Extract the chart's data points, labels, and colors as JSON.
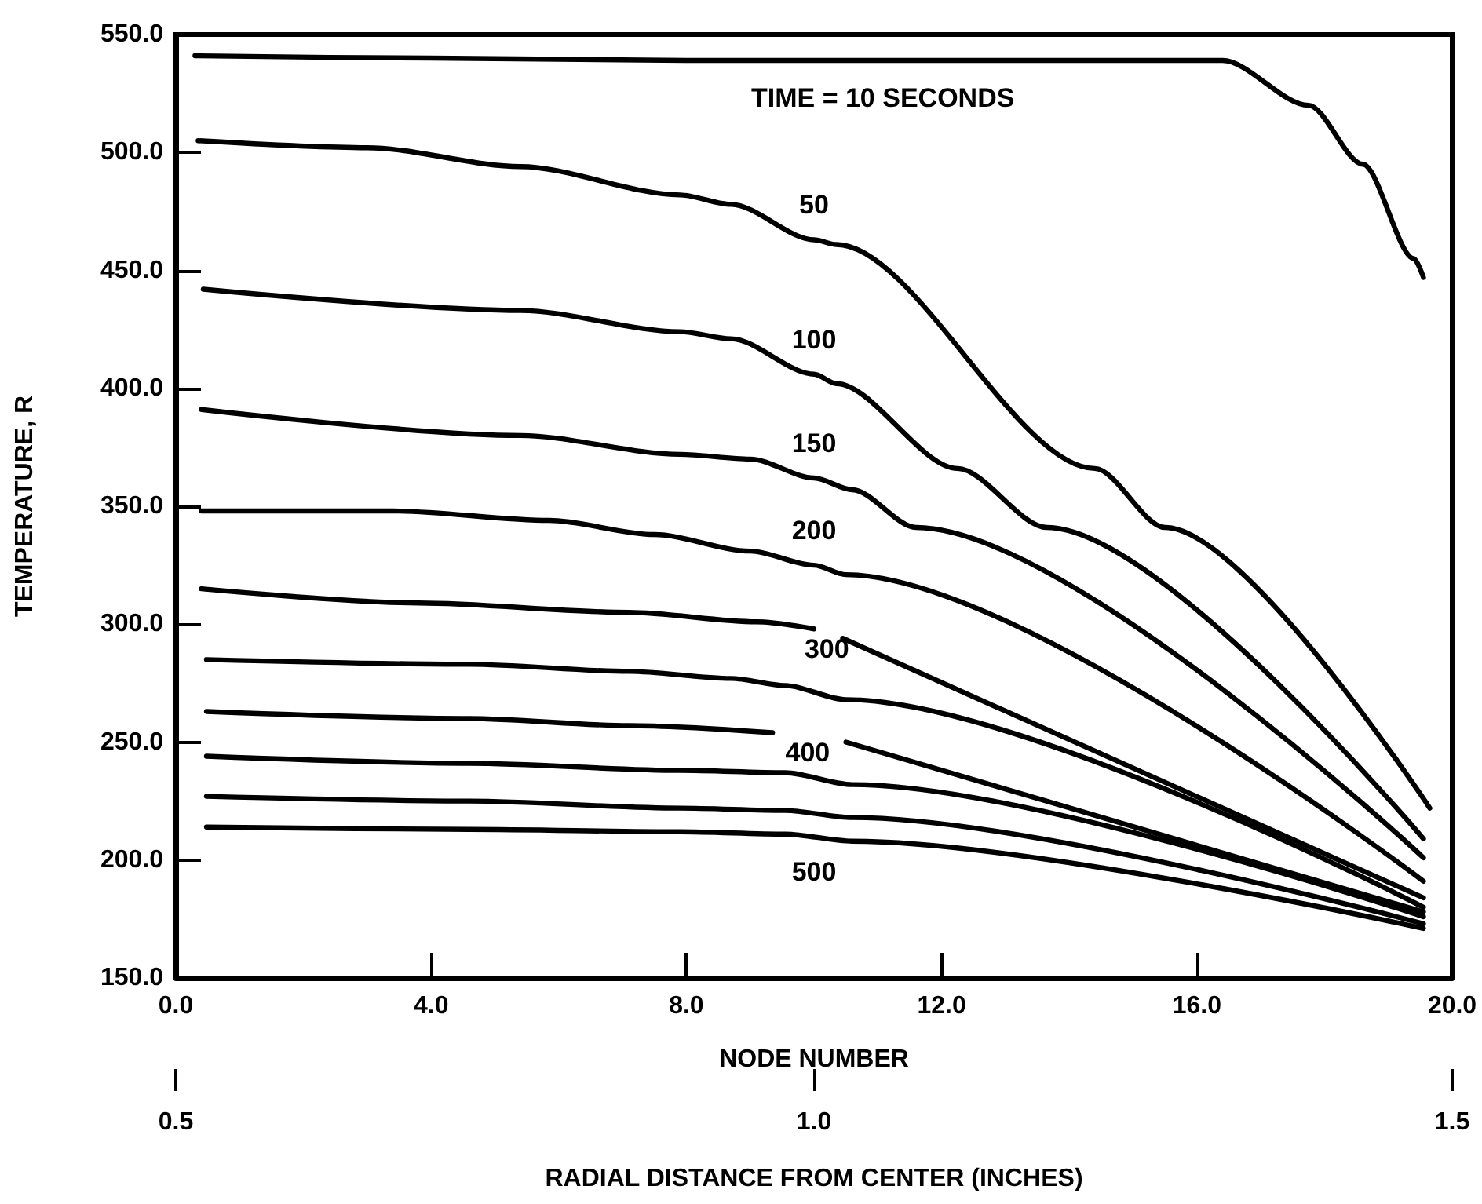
{
  "chart_data": {
    "type": "line",
    "xlabel": "NODE NUMBER",
    "ylabel": "TEMPERATURE, R",
    "x2label": "RADIAL DISTANCE FROM CENTER (INCHES)",
    "xlim": [
      0,
      20
    ],
    "xticks": [
      {
        "value": 0,
        "label": "0.0"
      },
      {
        "value": 4,
        "label": "4.0"
      },
      {
        "value": 8,
        "label": "8.0"
      },
      {
        "value": 12,
        "label": "12.0"
      },
      {
        "value": 16,
        "label": "16.0"
      },
      {
        "value": 20,
        "label": "20.0"
      }
    ],
    "x2lim": [
      0.5,
      1.5
    ],
    "x2ticks": [
      0.5,
      {
        "value": 1,
        "label": "1.0"
      },
      1.5
    ],
    "ylim": [
      150,
      550
    ],
    "yticks": [
      {
        "value": 150,
        "label": "150.0"
      },
      {
        "value": 200,
        "label": "200.0"
      },
      {
        "value": 250,
        "label": "250.0"
      },
      {
        "value": 300,
        "label": "300.0"
      },
      {
        "value": 350,
        "label": "350.0"
      },
      {
        "value": 400,
        "label": "400.0"
      },
      {
        "value": 450,
        "label": "450.0"
      },
      {
        "value": 500,
        "label": "500.0"
      },
      {
        "value": 550,
        "label": "550.0"
      }
    ],
    "series": [
      {
        "name": "TIME = 10 SECONDS",
        "color": "#000000",
        "x": [
          0.3,
          4,
          8,
          12,
          14,
          16.4,
          17.75,
          18.6,
          19.4,
          19.55
        ],
        "values": [
          541,
          540,
          539,
          539,
          539,
          539,
          520,
          495,
          455,
          447
        ]
      },
      {
        "name": "50",
        "color": "#000000",
        "x": [
          0.35,
          3,
          5.4,
          7.9,
          8.7,
          10,
          10.35,
          14.4,
          15.5,
          19.65
        ],
        "values": [
          505,
          502,
          494,
          482,
          478,
          463,
          461,
          366,
          341,
          222
        ]
      },
      {
        "name": "100",
        "color": "#000000",
        "x": [
          0.43,
          5.4,
          7.9,
          8.7,
          10,
          10.35,
          12.25,
          13.65,
          19.55
        ],
        "values": [
          442,
          433,
          424,
          421,
          406,
          402,
          366,
          341,
          209
        ]
      },
      {
        "name": "150",
        "color": "#000000",
        "x": [
          0.4,
          5.4,
          7.9,
          9,
          10,
          10.6,
          11.6,
          19.55
        ],
        "values": [
          391,
          380,
          372,
          370,
          362,
          357,
          341,
          201
        ]
      },
      {
        "name": "200",
        "color": "#000000",
        "x": [
          0.4,
          3.4,
          5.85,
          7.5,
          9,
          10,
          10.5,
          19.55
        ],
        "values": [
          348,
          348,
          344,
          338,
          331,
          325,
          321,
          191
        ]
      },
      {
        "name": "300",
        "color": "#000000",
        "x": [
          0.4,
          3.8,
          7.1,
          9.1,
          10,
          10.2,
          10.45,
          19.55
        ],
        "values": [
          315,
          309,
          305,
          301,
          298,
          null,
          294,
          184
        ]
      },
      {
        "color": "#000000",
        "x": [
          0.48,
          4.6,
          7.1,
          8.7,
          9.55,
          10.5,
          19.55
        ],
        "values": [
          285,
          283,
          280,
          277,
          274,
          268,
          180
        ]
      },
      {
        "name": "400",
        "color": "#000000",
        "x": [
          0.48,
          4.6,
          7.1,
          9.35,
          9.9,
          10.5,
          19.55
        ],
        "values": [
          263,
          260,
          257,
          254,
          null,
          250,
          178
        ]
      },
      {
        "color": "#000000",
        "x": [
          0.48,
          4.6,
          7.9,
          9.55,
          10.6,
          19.55
        ],
        "values": [
          244,
          241,
          238,
          237,
          232,
          176
        ]
      },
      {
        "color": "#000000",
        "x": [
          0.48,
          4.6,
          7.9,
          9.55,
          10.6,
          19.55
        ],
        "values": [
          227,
          225,
          222,
          221,
          218,
          173
        ]
      },
      {
        "name": "500",
        "color": "#000000",
        "x": [
          0.48,
          4.6,
          7.9,
          9.55,
          10.6,
          19.55
        ],
        "values": [
          214,
          213,
          212,
          211,
          208,
          171
        ]
      }
    ]
  }
}
